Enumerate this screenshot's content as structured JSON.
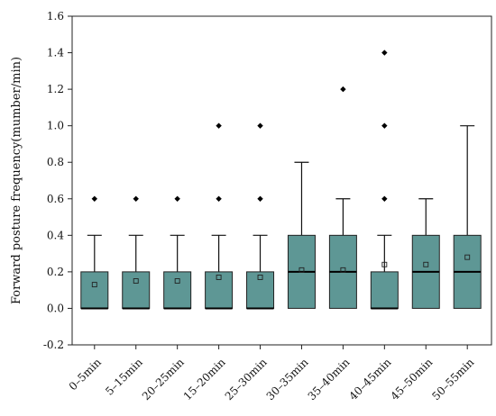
{
  "chart_data": {
    "type": "box",
    "title": "",
    "xlabel": "",
    "ylabel": "Forward posture frequency(mumber/min)",
    "ylim": [
      -0.2,
      1.6
    ],
    "yticks": [
      "-0.2",
      "0.0",
      "0.2",
      "0.4",
      "0.6",
      "0.8",
      "1.0",
      "1.2",
      "1.4",
      "1.6"
    ],
    "ytick_values": [
      -0.2,
      0.0,
      0.2,
      0.4,
      0.6,
      0.8,
      1.0,
      1.2,
      1.4,
      1.6
    ],
    "grid": false,
    "box_color": "#5e9795",
    "categories": [
      "0–5min",
      "5–15min",
      "20–25min",
      "15–20min",
      "25–30min",
      "30–35min",
      "35–40min",
      "40–45min",
      "45–50min",
      "50–55min"
    ],
    "boxes": [
      {
        "q1": 0.0,
        "median": 0.0,
        "q3": 0.2,
        "whisker_low": 0.0,
        "whisker_high": 0.4,
        "mean": 0.13,
        "outliers": [
          0.6
        ]
      },
      {
        "q1": 0.0,
        "median": 0.0,
        "q3": 0.2,
        "whisker_low": 0.0,
        "whisker_high": 0.4,
        "mean": 0.15,
        "outliers": [
          0.6
        ]
      },
      {
        "q1": 0.0,
        "median": 0.0,
        "q3": 0.2,
        "whisker_low": 0.0,
        "whisker_high": 0.4,
        "mean": 0.15,
        "outliers": [
          0.6
        ]
      },
      {
        "q1": 0.0,
        "median": 0.0,
        "q3": 0.2,
        "whisker_low": 0.0,
        "whisker_high": 0.4,
        "mean": 0.17,
        "outliers": [
          0.6,
          1.0
        ]
      },
      {
        "q1": 0.0,
        "median": 0.0,
        "q3": 0.2,
        "whisker_low": 0.0,
        "whisker_high": 0.4,
        "mean": 0.17,
        "outliers": [
          0.6,
          1.0
        ]
      },
      {
        "q1": 0.0,
        "median": 0.2,
        "q3": 0.4,
        "whisker_low": 0.0,
        "whisker_high": 0.8,
        "mean": 0.21,
        "outliers": []
      },
      {
        "q1": 0.0,
        "median": 0.2,
        "q3": 0.4,
        "whisker_low": 0.0,
        "whisker_high": 0.6,
        "mean": 0.21,
        "outliers": [
          1.2
        ]
      },
      {
        "q1": 0.0,
        "median": 0.0,
        "q3": 0.2,
        "whisker_low": 0.0,
        "whisker_high": 0.4,
        "mean": 0.24,
        "outliers": [
          0.6,
          1.0,
          1.4
        ]
      },
      {
        "q1": 0.0,
        "median": 0.2,
        "q3": 0.4,
        "whisker_low": 0.0,
        "whisker_high": 0.6,
        "mean": 0.24,
        "outliers": []
      },
      {
        "q1": 0.0,
        "median": 0.2,
        "q3": 0.4,
        "whisker_low": 0.0,
        "whisker_high": 1.0,
        "mean": 0.28,
        "outliers": []
      }
    ]
  }
}
